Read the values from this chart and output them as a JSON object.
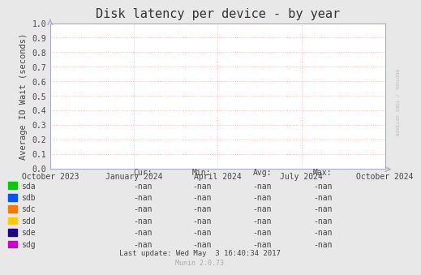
{
  "title": "Disk latency per device - by year",
  "ylabel": "Average IO Wait (seconds)",
  "bg_color": "#e8e8e8",
  "plot_bg_color": "#ffffff",
  "grid_color": "#ffaaaa",
  "axis_color": "#aaaacc",
  "ylim": [
    0.0,
    1.0
  ],
  "yticks": [
    0.0,
    0.1,
    0.2,
    0.3,
    0.4,
    0.5,
    0.6,
    0.7,
    0.8,
    0.9,
    1.0
  ],
  "xtick_labels": [
    "October 2023",
    "January 2024",
    "April 2024",
    "July 2024",
    "October 2024"
  ],
  "xtick_positions": [
    0.0,
    0.25,
    0.5,
    0.75,
    1.0
  ],
  "legend_entries": [
    {
      "label": "sda",
      "color": "#00cc00"
    },
    {
      "label": "sdb",
      "color": "#0055ff"
    },
    {
      "label": "sdc",
      "color": "#ff7700"
    },
    {
      "label": "sdd",
      "color": "#ffcc00"
    },
    {
      "label": "sde",
      "color": "#220088"
    },
    {
      "label": "sdg",
      "color": "#cc00cc"
    }
  ],
  "table_headers": [
    "Cur:",
    "Min:",
    "Avg:",
    "Max:"
  ],
  "table_values": "-nan",
  "footer_text": "Last update: Wed May  3 16:40:34 2017",
  "munin_text": "Munin 2.0.73",
  "rrdtool_text": "RRDTOOL / TOBI OETIKER",
  "title_fontsize": 11,
  "label_fontsize": 7.5,
  "tick_fontsize": 7,
  "table_fontsize": 7,
  "footer_fontsize": 6.5,
  "munin_fontsize": 6
}
